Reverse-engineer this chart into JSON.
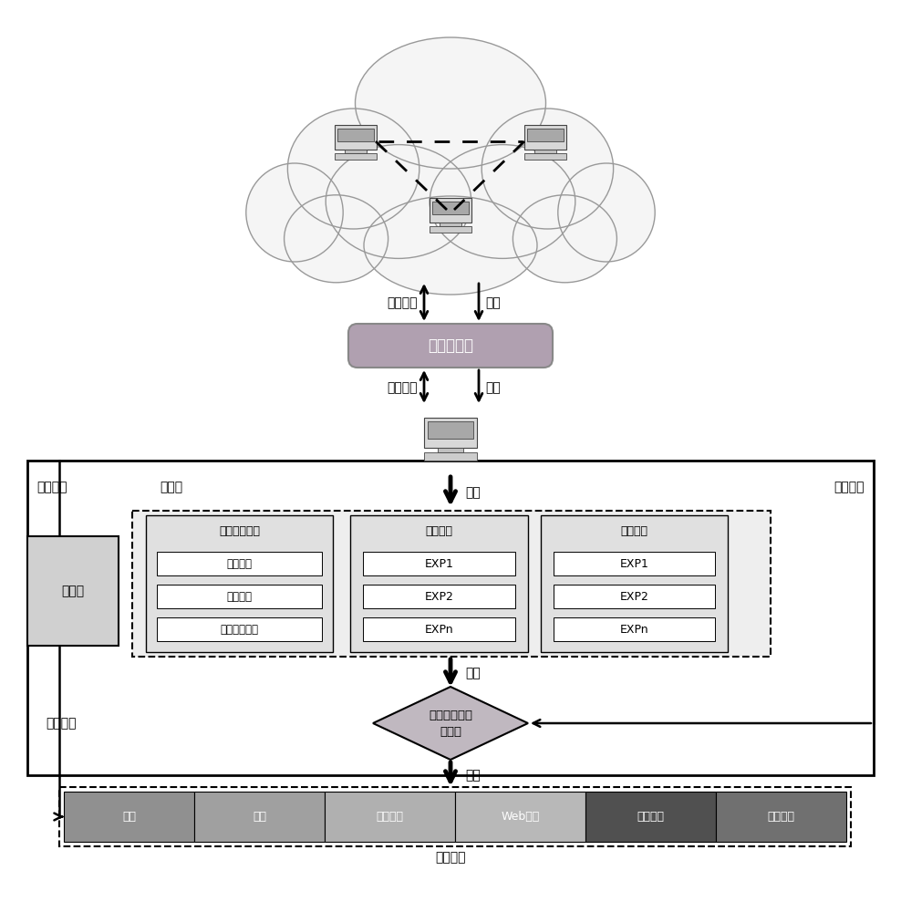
{
  "bg_color": "#ffffff",
  "labels": {
    "result_feedback_top": "结果反馈",
    "probe": "探测",
    "result_feedback_mid": "结果反馈",
    "select": "选择",
    "execute": "执行",
    "output": "输出",
    "input": "输入",
    "state_vector": "状态向量",
    "result_feedback_left": "结果反馈",
    "reward": "奖励信号",
    "action_lib": "动作库",
    "state_space": "状态空间",
    "fp_title": "指纹信息收集",
    "fp_items": [
      "端口扫描",
      "服务扫描",
      "操作系统扫描"
    ],
    "vuln_title": "漏洞测试",
    "vuln_items": [
      "EXP1",
      "EXP2",
      "EXPn"
    ],
    "priv_title": "权限提升",
    "priv_items": [
      "EXP1",
      "EXP2",
      "EXPn"
    ],
    "encoder": "编码器",
    "drl": "深度强化学习\n决策器",
    "target_selector": "目标选择器"
  },
  "state_items": [
    {
      "text": "端口",
      "color": "#909090"
    },
    {
      "text": "服务",
      "color": "#a0a0a0"
    },
    {
      "text": "操作系统",
      "color": "#b0b0b0"
    },
    {
      "text": "Web指纹",
      "color": "#b8b8b8"
    },
    {
      "text": "当前权限",
      "color": "#505050"
    },
    {
      "text": "历史动作",
      "color": "#707070"
    }
  ]
}
